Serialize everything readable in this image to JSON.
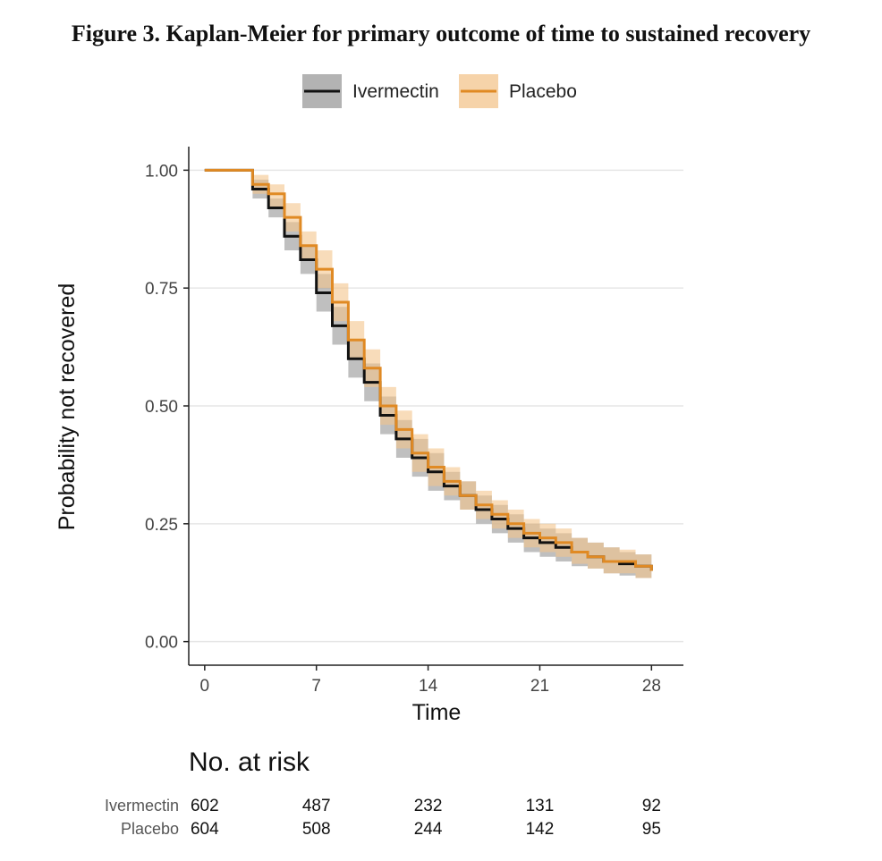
{
  "figure": {
    "label": "Figure 3.",
    "caption": "Kaplan-Meier for primary outcome of time to sustained recovery"
  },
  "chart_data": {
    "type": "line",
    "step": true,
    "xlabel": "Time",
    "ylabel": "Probability not recovered",
    "xlim": [
      -1,
      30
    ],
    "ylim": [
      -0.05,
      1.05
    ],
    "xticks": [
      0,
      7,
      14,
      21,
      28
    ],
    "yticks": [
      0.0,
      0.25,
      0.5,
      0.75,
      1.0
    ],
    "xtick_labels": [
      "0",
      "7",
      "14",
      "21",
      "28"
    ],
    "ytick_labels": [
      "0.00",
      "0.25",
      "0.50",
      "0.75",
      "1.00"
    ],
    "grid": "horizontal",
    "legend_position": "top",
    "series": [
      {
        "name": "Ivermectin",
        "color": "#111111",
        "band_color": "#8a8a8a",
        "x": [
          0,
          3,
          4,
          5,
          6,
          7,
          8,
          9,
          10,
          11,
          12,
          13,
          14,
          15,
          16,
          17,
          18,
          19,
          20,
          21,
          22,
          23,
          24,
          25,
          26,
          27,
          28
        ],
        "y": [
          1.0,
          0.96,
          0.92,
          0.86,
          0.81,
          0.74,
          0.67,
          0.6,
          0.55,
          0.48,
          0.43,
          0.39,
          0.36,
          0.33,
          0.31,
          0.28,
          0.26,
          0.24,
          0.22,
          0.21,
          0.2,
          0.19,
          0.18,
          0.17,
          0.165,
          0.16,
          0.15
        ],
        "lower": [
          1.0,
          0.94,
          0.9,
          0.83,
          0.78,
          0.7,
          0.63,
          0.56,
          0.51,
          0.44,
          0.39,
          0.35,
          0.32,
          0.3,
          0.28,
          0.25,
          0.23,
          0.21,
          0.19,
          0.18,
          0.17,
          0.16,
          0.155,
          0.145,
          0.14,
          0.135,
          0.13
        ],
        "upper": [
          1.0,
          0.98,
          0.94,
          0.89,
          0.84,
          0.78,
          0.71,
          0.64,
          0.59,
          0.52,
          0.47,
          0.43,
          0.4,
          0.36,
          0.34,
          0.31,
          0.29,
          0.27,
          0.25,
          0.24,
          0.23,
          0.22,
          0.21,
          0.2,
          0.19,
          0.185,
          0.175
        ]
      },
      {
        "name": "Placebo",
        "color": "#e08a24",
        "band_color": "#f3c48c",
        "x": [
          0,
          3,
          4,
          5,
          6,
          7,
          8,
          9,
          10,
          11,
          12,
          13,
          14,
          15,
          16,
          17,
          18,
          19,
          20,
          21,
          22,
          23,
          24,
          25,
          26,
          27,
          28
        ],
        "y": [
          1.0,
          0.97,
          0.95,
          0.9,
          0.84,
          0.79,
          0.72,
          0.64,
          0.58,
          0.5,
          0.45,
          0.4,
          0.37,
          0.34,
          0.31,
          0.29,
          0.27,
          0.25,
          0.23,
          0.22,
          0.21,
          0.19,
          0.18,
          0.17,
          0.17,
          0.16,
          0.15
        ],
        "lower": [
          1.0,
          0.95,
          0.92,
          0.87,
          0.81,
          0.75,
          0.68,
          0.6,
          0.54,
          0.46,
          0.41,
          0.36,
          0.33,
          0.31,
          0.28,
          0.26,
          0.24,
          0.22,
          0.2,
          0.19,
          0.18,
          0.165,
          0.155,
          0.145,
          0.145,
          0.135,
          0.13
        ],
        "upper": [
          1.0,
          0.99,
          0.97,
          0.93,
          0.87,
          0.83,
          0.76,
          0.68,
          0.62,
          0.54,
          0.49,
          0.44,
          0.41,
          0.37,
          0.34,
          0.32,
          0.3,
          0.28,
          0.26,
          0.25,
          0.24,
          0.22,
          0.21,
          0.2,
          0.195,
          0.185,
          0.175
        ]
      }
    ],
    "risk_table": {
      "title": "No. at risk",
      "times": [
        0,
        7,
        14,
        21,
        28
      ],
      "rows": [
        {
          "label": "Ivermectin",
          "values": [
            "602",
            "487",
            "232",
            "131",
            "92"
          ]
        },
        {
          "label": "Placebo",
          "values": [
            "604",
            "508",
            "244",
            "142",
            "95"
          ]
        }
      ]
    }
  }
}
